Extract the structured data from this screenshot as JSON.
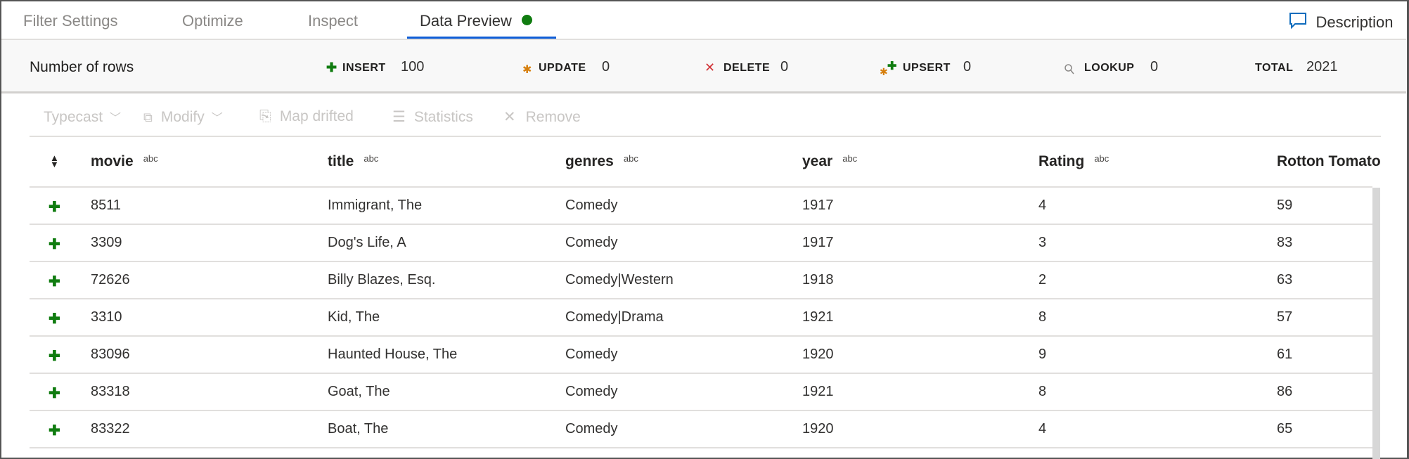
{
  "tabs": [
    {
      "label": "Filter Settings",
      "active": false
    },
    {
      "label": "Optimize",
      "active": false
    },
    {
      "label": "Inspect",
      "active": false
    },
    {
      "label": "Data Preview",
      "active": true,
      "status_color": "#107c10"
    }
  ],
  "description_label": "Description",
  "stats": {
    "label": "Number of rows",
    "insert": {
      "label": "INSERT",
      "value": "100",
      "icon": "plus-icon",
      "color": "#107c10"
    },
    "update": {
      "label": "UPDATE",
      "value": "0",
      "icon": "asterisk-icon",
      "color": "#d67f0d"
    },
    "delete": {
      "label": "DELETE",
      "value": "0",
      "icon": "x-icon",
      "color": "#d13438"
    },
    "upsert": {
      "label": "UPSERT",
      "value": "0",
      "icon": "upsert-icon"
    },
    "lookup": {
      "label": "LOOKUP",
      "value": "0",
      "icon": "search-icon"
    },
    "total": {
      "label": "TOTAL",
      "value": "2021"
    }
  },
  "toolbar": {
    "typecast": "Typecast",
    "modify": "Modify",
    "map_drifted": "Map drifted",
    "statistics": "Statistics",
    "remove": "Remove"
  },
  "table": {
    "columns": [
      {
        "name": "movie",
        "type": "abc"
      },
      {
        "name": "title",
        "type": "abc"
      },
      {
        "name": "genres",
        "type": "abc"
      },
      {
        "name": "year",
        "type": "abc"
      },
      {
        "name": "Rating",
        "type": "abc"
      },
      {
        "name": "Rotton Tomato",
        "type": ""
      }
    ],
    "rows": [
      [
        "8511",
        "Immigrant, The",
        "Comedy",
        "1917",
        "4",
        "59"
      ],
      [
        "3309",
        "Dog's Life, A",
        "Comedy",
        "1917",
        "3",
        "83"
      ],
      [
        "72626",
        "Billy Blazes, Esq.",
        "Comedy|Western",
        "1918",
        "2",
        "63"
      ],
      [
        "3310",
        "Kid, The",
        "Comedy|Drama",
        "1921",
        "8",
        "57"
      ],
      [
        "83096",
        "Haunted House, The",
        "Comedy",
        "1920",
        "9",
        "61"
      ],
      [
        "83318",
        "Goat, The",
        "Comedy",
        "1921",
        "8",
        "86"
      ],
      [
        "83322",
        "Boat, The",
        "Comedy",
        "1920",
        "4",
        "65"
      ]
    ]
  }
}
